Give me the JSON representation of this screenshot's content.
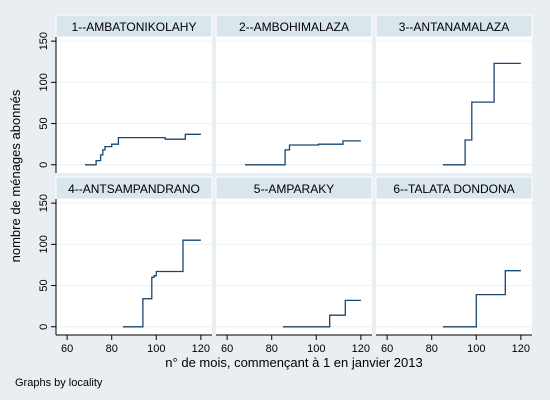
{
  "chart_data": {
    "type": "line",
    "line_style": "step",
    "layout": "facet-grid 2x3",
    "xlabel": "n° de mois, commençant à 1 en janvier 2013",
    "ylabel": "nombre de ménages abonnés",
    "note": "Graphs by locality",
    "xlim": [
      55,
      125
    ],
    "ylim": [
      -10,
      155
    ],
    "xticks": [
      60,
      80,
      100,
      120
    ],
    "yticks": [
      0,
      50,
      100,
      150
    ],
    "grid": true,
    "legend": "none",
    "line_color": "#1a476f",
    "panels": [
      {
        "title": "1--AMBATONIKOLAHY",
        "points": [
          [
            68,
            0
          ],
          [
            73,
            0
          ],
          [
            73,
            5
          ],
          [
            75,
            5
          ],
          [
            75,
            12
          ],
          [
            76,
            12
          ],
          [
            76,
            18
          ],
          [
            77,
            18
          ],
          [
            77,
            22
          ],
          [
            80,
            22
          ],
          [
            80,
            25
          ],
          [
            83,
            25
          ],
          [
            83,
            33
          ],
          [
            104,
            33
          ],
          [
            104,
            31
          ],
          [
            113,
            31
          ],
          [
            113,
            37
          ],
          [
            120,
            37
          ]
        ]
      },
      {
        "title": "2--AMBOHIMALAZA",
        "points": [
          [
            68,
            0
          ],
          [
            86,
            0
          ],
          [
            86,
            18
          ],
          [
            88,
            18
          ],
          [
            88,
            24
          ],
          [
            101,
            24
          ],
          [
            101,
            25
          ],
          [
            112,
            25
          ],
          [
            112,
            29
          ],
          [
            120,
            29
          ]
        ]
      },
      {
        "title": "3--ANTANAMALAZA",
        "points": [
          [
            85,
            0
          ],
          [
            95,
            0
          ],
          [
            95,
            30
          ],
          [
            98,
            30
          ],
          [
            98,
            76
          ],
          [
            108,
            76
          ],
          [
            108,
            123
          ],
          [
            120,
            123
          ]
        ]
      },
      {
        "title": "4--ANTSAMPANDRANO",
        "points": [
          [
            85,
            0
          ],
          [
            94,
            0
          ],
          [
            94,
            34
          ],
          [
            98,
            34
          ],
          [
            98,
            60
          ],
          [
            99,
            60
          ],
          [
            99,
            62
          ],
          [
            100,
            62
          ],
          [
            100,
            67
          ],
          [
            112,
            67
          ],
          [
            112,
            105
          ],
          [
            120,
            105
          ]
        ]
      },
      {
        "title": "5--AMPARAKY",
        "points": [
          [
            85,
            0
          ],
          [
            106,
            0
          ],
          [
            106,
            14
          ],
          [
            113,
            14
          ],
          [
            113,
            32
          ],
          [
            120,
            32
          ]
        ]
      },
      {
        "title": "6--TALATA DONDONA",
        "points": [
          [
            85,
            0
          ],
          [
            100,
            0
          ],
          [
            100,
            39
          ],
          [
            113,
            39
          ],
          [
            113,
            68
          ],
          [
            120,
            68
          ]
        ]
      }
    ]
  }
}
